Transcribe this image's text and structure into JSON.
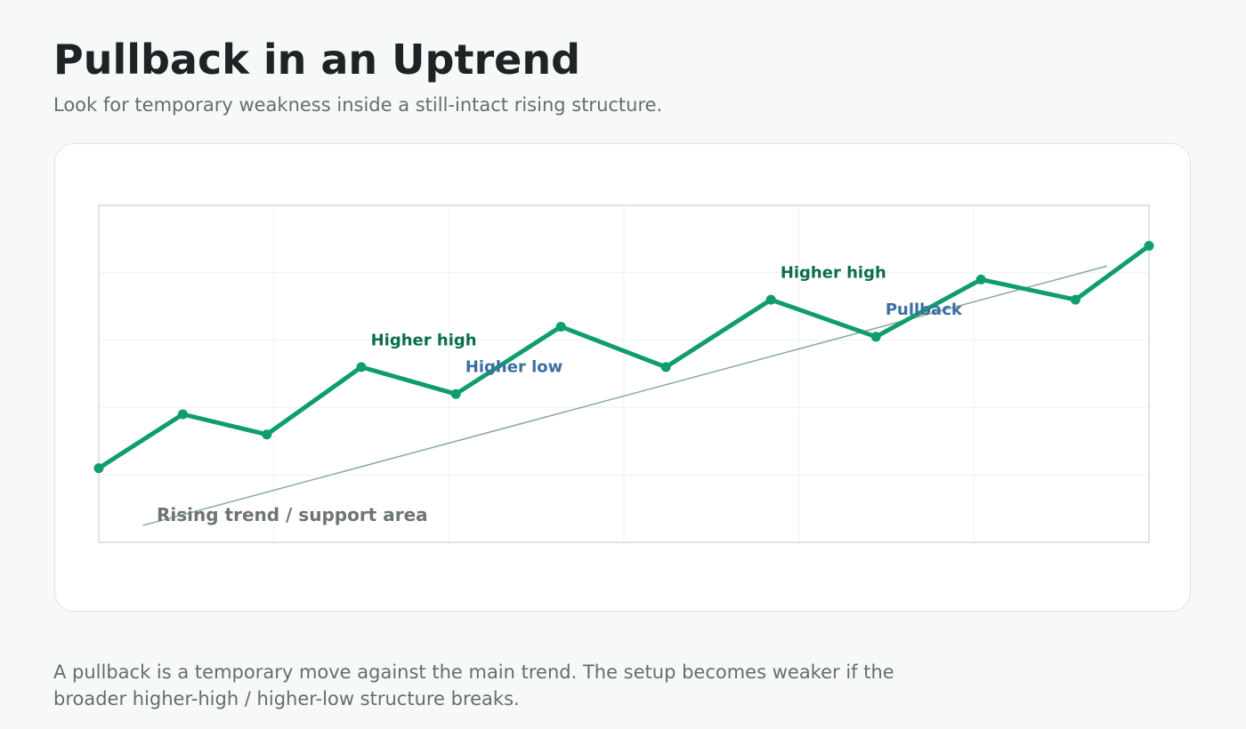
{
  "page": {
    "title": "Pullback in an Uptrend",
    "subtitle": "Look for temporary weakness inside a still-intact rising structure.",
    "caption": "A pullback is a temporary move against the main trend. The setup becomes weaker if the broader higher-high / higher-low structure breaks."
  },
  "chart_data": {
    "type": "line",
    "title": "",
    "xlabel": "",
    "ylabel": "",
    "x": [
      0,
      0.8,
      1.6,
      2.5,
      3.4,
      4.4,
      5.4,
      6.4,
      7.4,
      8.4,
      9.3,
      10
    ],
    "xlim": [
      0,
      10
    ],
    "ylim": [
      0,
      10
    ],
    "grid": true,
    "axes_labels_shown": false,
    "series": [
      {
        "values": [
          2.2,
          3.8,
          3.2,
          5.2,
          4.4,
          6.4,
          5.2,
          7.2,
          6.1,
          7.8,
          7.2,
          8.8
        ],
        "color": "#0f9d6e"
      }
    ],
    "trendline": {
      "x": [
        0.42,
        9.6
      ],
      "y": [
        0.5,
        8.2
      ],
      "color": "#8aa89e",
      "label": "Rising trend / support area"
    },
    "annotations": [
      {
        "text": "Higher high",
        "x": 2.59,
        "y": 5.85,
        "color": "#0b6e4f"
      },
      {
        "text": "Higher low",
        "x": 3.49,
        "y": 5.05,
        "color": "#3b6ea3"
      },
      {
        "text": "Higher high",
        "x": 6.49,
        "y": 7.85,
        "color": "#0b6e4f"
      },
      {
        "text": "Pullback",
        "x": 7.49,
        "y": 6.75,
        "color": "#3b6ea3"
      }
    ]
  }
}
